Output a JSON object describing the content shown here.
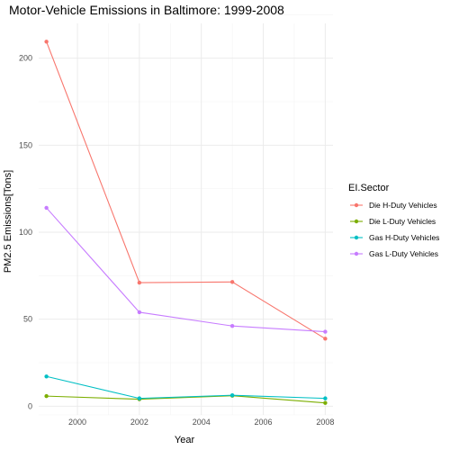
{
  "chart_data": {
    "type": "line",
    "title": "Motor-Vehicle Emissions in Baltimore: 1999-2008",
    "xlabel": "Year",
    "ylabel": "PM2.5 Emissions[Tons]",
    "x": [
      1999,
      2002,
      2005,
      2008
    ],
    "xlim": [
      1998.75,
      2008.25
    ],
    "ylim": [
      -5,
      220
    ],
    "x_ticks": [
      2000,
      2002,
      2004,
      2006,
      2008
    ],
    "y_ticks": [
      0,
      50,
      100,
      150,
      200
    ],
    "grid": true,
    "legend": {
      "title": "EI.Sector",
      "position": "right"
    },
    "series": [
      {
        "name": "Die H-Duty Vehicles",
        "color": "#F8766D",
        "values": [
          209.5,
          71.0,
          71.4,
          38.8
        ]
      },
      {
        "name": "Die L-Duty Vehicles",
        "color": "#7CAE00",
        "values": [
          5.8,
          4.0,
          6.0,
          1.9
        ]
      },
      {
        "name": "Gas H-Duty Vehicles",
        "color": "#00BFC4",
        "values": [
          17.1,
          4.5,
          6.3,
          4.5
        ]
      },
      {
        "name": "Gas L-Duty Vehicles",
        "color": "#C77CFF",
        "values": [
          114.0,
          54.0,
          46.1,
          42.8
        ]
      }
    ]
  }
}
